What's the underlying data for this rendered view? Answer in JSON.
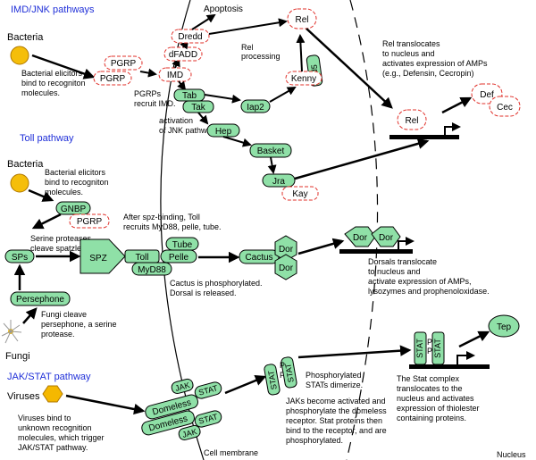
{
  "sections": {
    "imd": "IMD/JNK pathways",
    "toll": "Toll pathway",
    "jak": "JAK/STAT pathway"
  },
  "pathogens": {
    "bacteria1": "Bacteria",
    "bacteria2": "Bacteria",
    "fungi": "Fungi",
    "viruses": "Viruses"
  },
  "nodes": {
    "pgrp_a": "PGRP",
    "pgrp_b": "PGRP",
    "imd": "IMD",
    "dfadd": "dFADD",
    "dredd": "Dredd",
    "apoptosis": "Apoptosis",
    "rel_top": "Rel",
    "ird5": "Ird5",
    "kenny": "Kenny",
    "tab": "Tab",
    "tak": "Tak",
    "iap2": "Iap2",
    "hep": "Hep",
    "basket": "Basket",
    "jra": "Jra",
    "kay": "Kay",
    "rel_nuc": "Rel",
    "def": "Def",
    "cec": "Cec",
    "gnbp": "GNBP",
    "pgrp_toll": "PGRP",
    "sps": "SPs",
    "spz": "SPZ",
    "toll": "Toll",
    "tube": "Tube",
    "pelle": "Pelle",
    "myd88": "MyD88",
    "cactus": "Cactus",
    "dor1": "Dor",
    "dor2": "Dor",
    "dor3": "Dor",
    "dor4": "Dor",
    "persephone": "Persephone",
    "jak1": "JAK",
    "stat1": "STAT",
    "domeless1": "Domeless",
    "domeless2": "Domeless",
    "stat2": "STAT",
    "jak2": "JAK",
    "stat_p1": "STAT",
    "stat_p2": "STAT",
    "stat_n1": "STAT",
    "stat_n2": "STAT",
    "p1": "P",
    "p2": "P",
    "p3": "P",
    "p4": "P",
    "tep": "Tep"
  },
  "notes": {
    "imd1": "Bacterial elicitors",
    "imd2": "bind to recogniton",
    "imd3": "molecules.",
    "pgrp1": "PGRPs",
    "pgrp2": "recruit IMD.",
    "relproc1": "Rel",
    "relproc2": "processing",
    "jnk1": "activation",
    "jnk2": "of JNK pathway",
    "reltr1": "Rel translocates",
    "reltr2": "to nucleus and",
    "reltr3": "activates expression of AMPs",
    "reltr4": "(e.g., Defensin, Cecropin)",
    "tollb1": "Bacterial elicitors",
    "tollb2": "bind to recogniton",
    "tollb3": "molecules.",
    "ser1": "Serine proteases",
    "ser2": "cleave spatzle",
    "spz1": "After spz-binding, Toll",
    "spz2": "recruits MyD88, pelle, tube.",
    "cac1": "Cactus is phosphorylated.",
    "cac2": "Dorsal is released.",
    "dor1": "Dorsals translocate",
    "dor2": "to nucleus and",
    "dor3": "activate expression of AMPs,",
    "dor4": "lysozymes and prophenoloxidase.",
    "fun1": "Fungi cleave",
    "fun2": "persephone, a serine",
    "fun3": "protease.",
    "vir1": "Viruses bind to",
    "vir2": "unknown recognition",
    "vir3": "molecules, which trigger",
    "vir4": "JAK/STAT pathway.",
    "jak1": "JAKs become activated and",
    "jak2": "phosphorylate the domeless",
    "jak3": "receptor. Stat proteins then",
    "jak4": "bind to the receptor, and are",
    "jak5": "phosphorylated.",
    "dim1": "Phosphorylated",
    "dim2": "STATs dimerize.",
    "stc1": "The Stat complex",
    "stc2": "translocates to the",
    "stc3": "nucleus and activates",
    "stc4": "expression of thiolester",
    "stc5": "containing proteins.",
    "membrane": "Cell membrane",
    "nucleus": "Nucleus"
  },
  "colors": {
    "protein_fill": "#8fe0a7",
    "bacteria_fill": "#f5be0a",
    "virus_fill": "#f5b800",
    "dashed_red": "#e0302a",
    "section_blue": "#1f2fd8"
  }
}
